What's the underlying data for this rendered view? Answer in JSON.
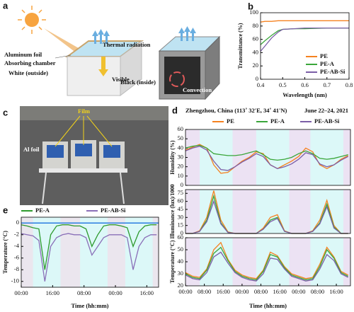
{
  "diagram": {
    "label": "a",
    "thermal": "Thermal radiation",
    "foil": "Aluminum foil",
    "chamber": "Absorbing chamber",
    "white": "White (outside)",
    "visible": "Visible",
    "black": "Black (inside)",
    "convection": "Convection"
  },
  "photo": {
    "label": "c",
    "film": "Film",
    "foil": "Al foil"
  },
  "chart_data": [
    {
      "type": "line",
      "panel_label": "b",
      "ylabel": "Transmittance (%)",
      "xlabel": "Wavelength (nm)",
      "x": [
        0.4,
        0.42,
        0.45,
        0.48,
        0.5,
        0.55,
        0.6,
        0.7,
        0.8
      ],
      "series": [
        {
          "name": "PE",
          "color": "#f58220",
          "values": [
            86,
            87,
            87,
            88,
            88,
            88,
            88,
            88,
            88
          ]
        },
        {
          "name": "PE-A",
          "color": "#3aa63a",
          "values": [
            52,
            58,
            66,
            73,
            75,
            76,
            76,
            77,
            77
          ]
        },
        {
          "name": "PE-AB-Si",
          "color": "#7b5ea7",
          "values": [
            42,
            50,
            62,
            71,
            75,
            76,
            77,
            77,
            77
          ]
        }
      ],
      "xlim": [
        0.4,
        0.8
      ],
      "xticks": [
        0.4,
        0.5,
        0.6,
        0.7,
        0.8
      ],
      "ylim": [
        0,
        100
      ],
      "yticks": [
        0,
        20,
        40,
        60,
        80,
        100
      ],
      "legend": "lower right"
    },
    {
      "type": "line",
      "panel_label": "d",
      "title": "Zhengzhou, China (113˚ 32'E, 34˚ 41'N)",
      "subtitle": "June 22–24, 2021",
      "ylabel": "Humidity (%)",
      "x": [
        0,
        3,
        6,
        9,
        12,
        15,
        18,
        21,
        24,
        27,
        30,
        33,
        36,
        39,
        42,
        45,
        48,
        51,
        54,
        57,
        60,
        63,
        66,
        69
      ],
      "series": [
        {
          "name": "PE",
          "color": "#f58220",
          "values": [
            38,
            41,
            44,
            40,
            22,
            13,
            14,
            20,
            26,
            30,
            36,
            34,
            22,
            18,
            22,
            26,
            31,
            40,
            36,
            22,
            18,
            22,
            28,
            32
          ]
        },
        {
          "name": "PE-A",
          "color": "#3aa63a",
          "values": [
            40,
            42,
            43,
            40,
            34,
            33,
            32,
            32,
            33,
            35,
            37,
            33,
            28,
            27,
            28,
            30,
            34,
            37,
            34,
            29,
            28,
            29,
            31,
            33
          ]
        },
        {
          "name": "PE-AB-Si",
          "color": "#7b5ea7",
          "values": [
            37,
            40,
            42,
            38,
            26,
            17,
            16,
            20,
            25,
            29,
            34,
            31,
            22,
            18,
            20,
            23,
            28,
            35,
            33,
            23,
            20,
            22,
            27,
            31
          ]
        }
      ],
      "xlim": [
        0,
        70
      ],
      "ylim": [
        0,
        60
      ],
      "yticks": [
        0,
        10,
        20,
        30,
        40,
        50,
        60
      ],
      "legend": "top",
      "night_spans": [
        [
          0,
          6
        ],
        [
          20,
          30
        ],
        [
          44,
          53
        ],
        [
          67,
          70
        ]
      ],
      "night_color": "#ece2f3",
      "day_color": "#dcf8f8"
    },
    {
      "type": "line",
      "ylabel": "Illuminance (lux)/1000",
      "x": [
        0,
        3,
        6,
        9,
        12,
        15,
        18,
        21,
        24,
        27,
        30,
        33,
        36,
        39,
        42,
        45,
        48,
        51,
        54,
        57,
        60,
        63,
        66,
        69
      ],
      "series": [
        {
          "color": "#f58220",
          "values": [
            0,
            0,
            5,
            30,
            80,
            25,
            3,
            0,
            0,
            0,
            0,
            10,
            30,
            35,
            5,
            0,
            0,
            0,
            5,
            25,
            62,
            15,
            0,
            0
          ]
        },
        {
          "color": "#3aa63a",
          "values": [
            0,
            0,
            4,
            25,
            70,
            20,
            2,
            0,
            0,
            0,
            0,
            8,
            25,
            30,
            4,
            0,
            0,
            0,
            4,
            20,
            55,
            12,
            0,
            0
          ]
        },
        {
          "color": "#7b5ea7",
          "values": [
            0,
            0,
            4,
            22,
            60,
            18,
            2,
            0,
            0,
            0,
            0,
            8,
            22,
            28,
            4,
            0,
            0,
            0,
            4,
            18,
            50,
            10,
            0,
            0
          ]
        }
      ],
      "xlim": [
        0,
        70
      ],
      "ylim": [
        0,
        82
      ],
      "yticks": [
        0,
        15,
        30,
        45,
        60,
        75
      ],
      "night_spans": [
        [
          0,
          6
        ],
        [
          20,
          30
        ],
        [
          44,
          53
        ],
        [
          67,
          70
        ]
      ],
      "night_color": "#ece2f3",
      "day_color": "#dcf8f8"
    },
    {
      "type": "line",
      "ylabel": "Temperature (°C)",
      "xlabel": "Time (hh:mm)",
      "x": [
        0,
        3,
        6,
        9,
        12,
        15,
        18,
        21,
        24,
        27,
        30,
        33,
        36,
        39,
        42,
        45,
        48,
        51,
        54,
        57,
        60,
        63,
        66,
        69
      ],
      "series": [
        {
          "color": "#f58220",
          "values": [
            31,
            28,
            27,
            34,
            50,
            56,
            42,
            33,
            29,
            27,
            26,
            33,
            48,
            45,
            36,
            30,
            28,
            26,
            27,
            38,
            52,
            44,
            32,
            29
          ]
        },
        {
          "color": "#3aa63a",
          "values": [
            30,
            27,
            26,
            33,
            47,
            52,
            41,
            32,
            28,
            26,
            25,
            32,
            46,
            44,
            35,
            29,
            27,
            25,
            26,
            36,
            50,
            43,
            31,
            28
          ]
        },
        {
          "color": "#7b5ea7",
          "values": [
            29,
            26,
            25,
            31,
            44,
            48,
            39,
            31,
            27,
            25,
            24,
            30,
            43,
            42,
            34,
            28,
            26,
            24,
            25,
            34,
            46,
            41,
            30,
            27
          ]
        }
      ],
      "xlim": [
        0,
        70
      ],
      "ylim": [
        20,
        60
      ],
      "yticks": [
        20,
        30,
        40,
        50,
        60
      ],
      "xticks": [
        {
          "value": 0,
          "label": "00:00"
        },
        {
          "value": 8,
          "label": "08:00"
        },
        {
          "value": 16,
          "label": "16:00"
        },
        {
          "value": 24,
          "label": "00:00"
        },
        {
          "value": 32,
          "label": "08:00"
        },
        {
          "value": 40,
          "label": "16:00"
        },
        {
          "value": 48,
          "label": "00:00"
        },
        {
          "value": 56,
          "label": "08:00"
        },
        {
          "value": 64,
          "label": "16:00"
        }
      ],
      "night_spans": [
        [
          0,
          6
        ],
        [
          20,
          30
        ],
        [
          44,
          53
        ],
        [
          67,
          70
        ]
      ],
      "night_color": "#ece2f3",
      "day_color": "#dcf8f8"
    },
    {
      "type": "line",
      "panel_label": "e",
      "ylabel": "Temperature (°C)",
      "xlabel": "Time (hh:mm)",
      "x": [
        0,
        3,
        6,
        9,
        12,
        15,
        18,
        21,
        24,
        27,
        30,
        33,
        36,
        39,
        42,
        45,
        48,
        51,
        54,
        57,
        60,
        63,
        66,
        69
      ],
      "series": [
        {
          "name": "PE-A",
          "color": "#2e9a2e",
          "values": [
            -0.3,
            -0.5,
            -0.8,
            -1,
            -8,
            -2,
            -0.5,
            -0.3,
            -0.3,
            -0.5,
            -0.5,
            -1,
            -4,
            -2,
            -0.5,
            -0.3,
            -0.3,
            -0.5,
            -0.8,
            -4,
            -1.5,
            -0.5,
            -0.3,
            -0.3
          ]
        },
        {
          "name": "PE-AB-Si",
          "color": "#8a6fb8",
          "values": [
            -1.8,
            -2,
            -2.2,
            -3,
            -10,
            -4,
            -2.5,
            -2,
            -1.8,
            -2,
            -2,
            -2.5,
            -5.5,
            -4,
            -2.5,
            -2,
            -2,
            -2,
            -2.5,
            -8,
            -4,
            -2.5,
            -2,
            -2
          ]
        }
      ],
      "xlim": [
        0,
        70
      ],
      "ylim": [
        -11,
        1
      ],
      "yticks": [
        0,
        -2,
        -4,
        -6,
        -8,
        -10
      ],
      "xticks": [
        {
          "value": 0,
          "label": "00:00"
        },
        {
          "value": 16,
          "label": "16:00"
        },
        {
          "value": 32,
          "label": "08:00"
        },
        {
          "value": 48,
          "label": "00:00"
        },
        {
          "value": 64,
          "label": "16:00"
        }
      ],
      "legend": "top",
      "ref_line": true,
      "ref_color": "#2a7de1",
      "night_spans": [
        [
          0,
          6
        ],
        [
          20,
          30
        ],
        [
          44,
          53
        ],
        [
          67,
          70
        ]
      ],
      "night_color": "#ebe6ee",
      "day_color": "#dcf8f8"
    }
  ]
}
